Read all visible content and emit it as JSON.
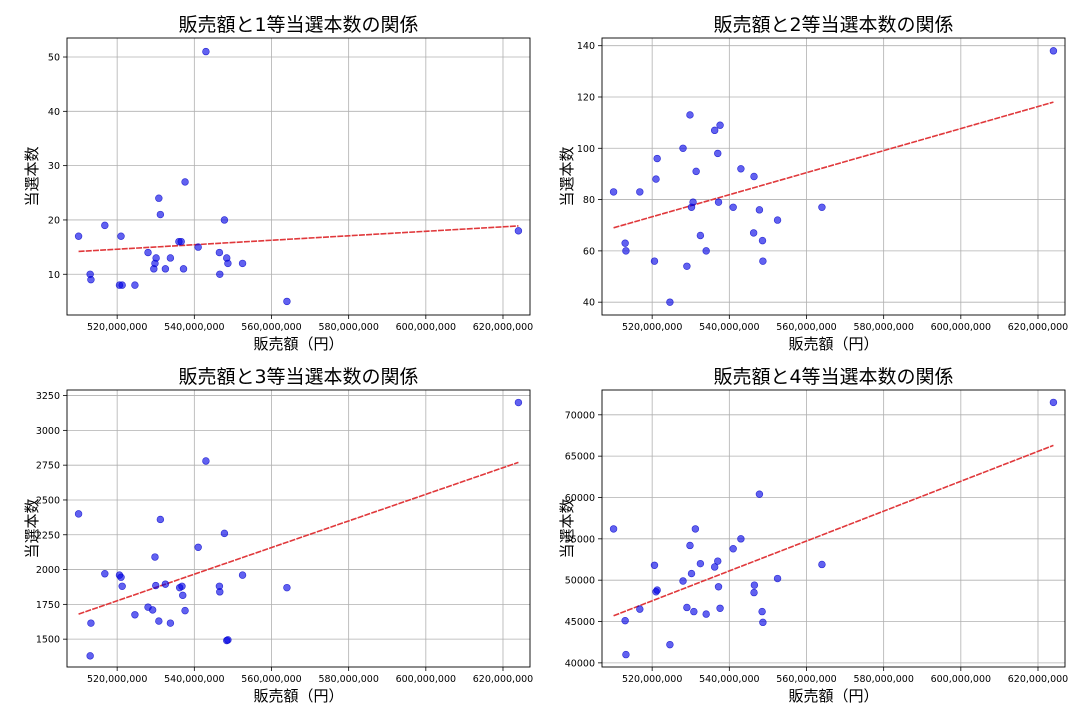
{
  "chart_data": [
    {
      "type": "scatter",
      "title": "販売額と1等当選本数の関係",
      "xlabel": "販売額（円）",
      "ylabel": "当選本数",
      "grid": true,
      "xlim": [
        507000000,
        627000000
      ],
      "ylim": [
        2.5,
        53.5
      ],
      "xticks": [
        520000000,
        540000000,
        560000000,
        580000000,
        600000000,
        620000000
      ],
      "xtick_labels": [
        "520,000,000",
        "540,000,000",
        "560,000,000",
        "580,000,000",
        "600,000,000",
        "620,000,000"
      ],
      "yticks": [
        10,
        20,
        30,
        40,
        50
      ],
      "ytick_labels": [
        "10",
        "20",
        "30",
        "40",
        "50"
      ],
      "point_color": "#0000e6",
      "trend_color": "#e0383b",
      "points": [
        {
          "x": 510000000,
          "y": 17
        },
        {
          "x": 513000000,
          "y": 10
        },
        {
          "x": 513200000,
          "y": 9
        },
        {
          "x": 516800000,
          "y": 19
        },
        {
          "x": 520600000,
          "y": 8
        },
        {
          "x": 521000000,
          "y": 17
        },
        {
          "x": 521300000,
          "y": 8
        },
        {
          "x": 524600000,
          "y": 8
        },
        {
          "x": 528000000,
          "y": 14
        },
        {
          "x": 529500000,
          "y": 11
        },
        {
          "x": 529800000,
          "y": 12
        },
        {
          "x": 530100000,
          "y": 13
        },
        {
          "x": 530800000,
          "y": 24
        },
        {
          "x": 531200000,
          "y": 21
        },
        {
          "x": 532500000,
          "y": 11
        },
        {
          "x": 533800000,
          "y": 13
        },
        {
          "x": 536000000,
          "y": 16
        },
        {
          "x": 536600000,
          "y": 16
        },
        {
          "x": 537200000,
          "y": 11
        },
        {
          "x": 537600000,
          "y": 27
        },
        {
          "x": 541000000,
          "y": 15
        },
        {
          "x": 543000000,
          "y": 51
        },
        {
          "x": 546500000,
          "y": 14
        },
        {
          "x": 546600000,
          "y": 10
        },
        {
          "x": 547800000,
          "y": 20
        },
        {
          "x": 548400000,
          "y": 13
        },
        {
          "x": 548700000,
          "y": 12
        },
        {
          "x": 552500000,
          "y": 12
        },
        {
          "x": 564000000,
          "y": 5
        },
        {
          "x": 624000000,
          "y": 18
        }
      ],
      "trend": {
        "x": [
          510000000,
          624000000
        ],
        "y": [
          14.2,
          18.9
        ]
      }
    },
    {
      "type": "scatter",
      "title": "販売額と2等当選本数の関係",
      "xlabel": "販売額（円）",
      "ylabel": "当選本数",
      "grid": true,
      "xlim": [
        507000000,
        627000000
      ],
      "ylim": [
        35,
        143
      ],
      "xticks": [
        520000000,
        540000000,
        560000000,
        580000000,
        600000000,
        620000000
      ],
      "xtick_labels": [
        "520,000,000",
        "540,000,000",
        "560,000,000",
        "580,000,000",
        "600,000,000",
        "620,000,000"
      ],
      "yticks": [
        40,
        60,
        80,
        100,
        120,
        140
      ],
      "ytick_labels": [
        "40",
        "60",
        "80",
        "100",
        "120",
        "140"
      ],
      "point_color": "#0000e6",
      "trend_color": "#e0383b",
      "points": [
        {
          "x": 510000000,
          "y": 83
        },
        {
          "x": 513000000,
          "y": 63
        },
        {
          "x": 513200000,
          "y": 60
        },
        {
          "x": 516800000,
          "y": 83
        },
        {
          "x": 520600000,
          "y": 56
        },
        {
          "x": 521000000,
          "y": 88
        },
        {
          "x": 521300000,
          "y": 96
        },
        {
          "x": 524600000,
          "y": 40
        },
        {
          "x": 528000000,
          "y": 100
        },
        {
          "x": 529000000,
          "y": 54
        },
        {
          "x": 529800000,
          "y": 113
        },
        {
          "x": 530200000,
          "y": 77
        },
        {
          "x": 530600000,
          "y": 79
        },
        {
          "x": 531400000,
          "y": 91
        },
        {
          "x": 532500000,
          "y": 66
        },
        {
          "x": 534000000,
          "y": 60
        },
        {
          "x": 536200000,
          "y": 107
        },
        {
          "x": 537000000,
          "y": 98
        },
        {
          "x": 537200000,
          "y": 79
        },
        {
          "x": 537600000,
          "y": 109
        },
        {
          "x": 541000000,
          "y": 77
        },
        {
          "x": 543000000,
          "y": 92
        },
        {
          "x": 546300000,
          "y": 67
        },
        {
          "x": 546400000,
          "y": 89
        },
        {
          "x": 547800000,
          "y": 76
        },
        {
          "x": 548600000,
          "y": 64
        },
        {
          "x": 548700000,
          "y": 56
        },
        {
          "x": 552500000,
          "y": 72
        },
        {
          "x": 564000000,
          "y": 77
        },
        {
          "x": 624000000,
          "y": 138
        }
      ],
      "trend": {
        "x": [
          510000000,
          624000000
        ],
        "y": [
          69,
          118
        ]
      }
    },
    {
      "type": "scatter",
      "title": "販売額と3等当選本数の関係",
      "xlabel": "販売額（円）",
      "ylabel": "当選本数",
      "grid": true,
      "xlim": [
        507000000,
        627000000
      ],
      "ylim": [
        1300,
        3290
      ],
      "xticks": [
        520000000,
        540000000,
        560000000,
        580000000,
        600000000,
        620000000
      ],
      "xtick_labels": [
        "520,000,000",
        "540,000,000",
        "560,000,000",
        "580,000,000",
        "600,000,000",
        "620,000,000"
      ],
      "yticks": [
        1500,
        1750,
        2000,
        2250,
        2500,
        2750,
        3000,
        3250
      ],
      "ytick_labels": [
        "1500",
        "1750",
        "2000",
        "2250",
        "2500",
        "2750",
        "3000",
        "3250"
      ],
      "point_color": "#0000e6",
      "trend_color": "#e0383b",
      "points": [
        {
          "x": 510000000,
          "y": 2400
        },
        {
          "x": 513000000,
          "y": 1380
        },
        {
          "x": 513200000,
          "y": 1615
        },
        {
          "x": 516800000,
          "y": 1970
        },
        {
          "x": 520600000,
          "y": 1960
        },
        {
          "x": 521000000,
          "y": 1945
        },
        {
          "x": 521300000,
          "y": 1880
        },
        {
          "x": 524600000,
          "y": 1675
        },
        {
          "x": 528000000,
          "y": 1730
        },
        {
          "x": 529200000,
          "y": 1710
        },
        {
          "x": 529800000,
          "y": 2090
        },
        {
          "x": 530000000,
          "y": 1885
        },
        {
          "x": 530800000,
          "y": 1630
        },
        {
          "x": 531200000,
          "y": 2360
        },
        {
          "x": 532500000,
          "y": 1895
        },
        {
          "x": 533800000,
          "y": 1615
        },
        {
          "x": 536200000,
          "y": 1870
        },
        {
          "x": 536800000,
          "y": 1880
        },
        {
          "x": 537000000,
          "y": 1815
        },
        {
          "x": 537600000,
          "y": 1705
        },
        {
          "x": 541000000,
          "y": 2160
        },
        {
          "x": 543000000,
          "y": 2780
        },
        {
          "x": 546500000,
          "y": 1880
        },
        {
          "x": 546600000,
          "y": 1840
        },
        {
          "x": 547800000,
          "y": 2260
        },
        {
          "x": 548400000,
          "y": 1490
        },
        {
          "x": 548700000,
          "y": 1495
        },
        {
          "x": 552500000,
          "y": 1960
        },
        {
          "x": 564000000,
          "y": 1870
        },
        {
          "x": 624000000,
          "y": 3200
        }
      ],
      "trend": {
        "x": [
          510000000,
          624000000
        ],
        "y": [
          1680,
          2770
        ]
      }
    },
    {
      "type": "scatter",
      "title": "販売額と4等当選本数の関係",
      "xlabel": "販売額（円）",
      "ylabel": "当選本数",
      "grid": true,
      "xlim": [
        507000000,
        627000000
      ],
      "ylim": [
        39500,
        73000
      ],
      "xticks": [
        520000000,
        540000000,
        560000000,
        580000000,
        600000000,
        620000000
      ],
      "xtick_labels": [
        "520,000,000",
        "540,000,000",
        "560,000,000",
        "580,000,000",
        "600,000,000",
        "620,000,000"
      ],
      "yticks": [
        40000,
        45000,
        50000,
        55000,
        60000,
        65000,
        70000
      ],
      "ytick_labels": [
        "40000",
        "45000",
        "50000",
        "55000",
        "60000",
        "65000",
        "70000"
      ],
      "point_color": "#0000e6",
      "trend_color": "#e0383b",
      "points": [
        {
          "x": 510000000,
          "y": 56200
        },
        {
          "x": 513000000,
          "y": 45100
        },
        {
          "x": 513200000,
          "y": 41000
        },
        {
          "x": 516800000,
          "y": 46500
        },
        {
          "x": 520600000,
          "y": 51800
        },
        {
          "x": 521000000,
          "y": 48600
        },
        {
          "x": 521300000,
          "y": 48800
        },
        {
          "x": 524600000,
          "y": 42200
        },
        {
          "x": 528000000,
          "y": 49900
        },
        {
          "x": 529000000,
          "y": 46700
        },
        {
          "x": 529800000,
          "y": 54200
        },
        {
          "x": 530200000,
          "y": 50800
        },
        {
          "x": 530800000,
          "y": 46200
        },
        {
          "x": 531200000,
          "y": 56200
        },
        {
          "x": 532500000,
          "y": 52000
        },
        {
          "x": 534000000,
          "y": 45900
        },
        {
          "x": 536200000,
          "y": 51600
        },
        {
          "x": 537000000,
          "y": 52300
        },
        {
          "x": 537200000,
          "y": 49200
        },
        {
          "x": 537600000,
          "y": 46600
        },
        {
          "x": 541000000,
          "y": 53800
        },
        {
          "x": 543000000,
          "y": 55000
        },
        {
          "x": 546400000,
          "y": 48500
        },
        {
          "x": 546500000,
          "y": 49400
        },
        {
          "x": 547800000,
          "y": 60400
        },
        {
          "x": 548500000,
          "y": 46200
        },
        {
          "x": 548700000,
          "y": 44900
        },
        {
          "x": 552500000,
          "y": 50200
        },
        {
          "x": 564000000,
          "y": 51900
        },
        {
          "x": 624000000,
          "y": 71500
        }
      ],
      "trend": {
        "x": [
          510000000,
          624000000
        ],
        "y": [
          45700,
          66300
        ]
      }
    }
  ]
}
